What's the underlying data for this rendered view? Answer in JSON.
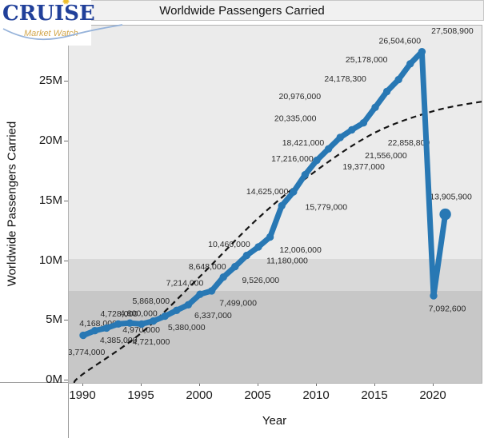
{
  "logo": {
    "brand": "CRUISE",
    "tagline": "Market Watch",
    "brand_color": "#21409a",
    "tagline_color": "#d2a74d",
    "star_color": "#eebe2f",
    "swoosh_color": "#96b3da"
  },
  "chart_data": {
    "type": "line",
    "title": "Worldwide Passengers Carried",
    "xlabel": "Year",
    "ylabel": "Worldwide Passengers Carried",
    "grid": false,
    "legend_position": "none",
    "xlim_years": [
      1988.8,
      2024.1
    ],
    "ylim": [
      0,
      30300000
    ],
    "x_ticks": [
      1990,
      1995,
      2000,
      2005,
      2010,
      2015,
      2020
    ],
    "y_ticks": [
      {
        "value": 0,
        "label": "0M"
      },
      {
        "value": 5000000,
        "label": "5M"
      },
      {
        "value": 10000000,
        "label": "10M"
      },
      {
        "value": 15000000,
        "label": "15M"
      },
      {
        "value": 20000000,
        "label": "20M"
      },
      {
        "value": 25000000,
        "label": "25M"
      }
    ],
    "background_bands": [
      {
        "top_millions": 10.17,
        "bottom_millions": 7.49,
        "color": "#d9d9d9"
      },
      {
        "top_millions": 7.49,
        "bottom_millions": -0.25,
        "color": "#c7c7c7"
      }
    ],
    "series": [
      {
        "name": "Worldwide passengers carried",
        "color": "#2878b4",
        "points": [
          {
            "year": 1990,
            "value": 3774000,
            "label": "3,774,000",
            "label_dx": 4,
            "label_dy": 21
          },
          {
            "year": 1991,
            "value": 4168000,
            "label": "4,168,000",
            "label_dx": 4,
            "label_dy": -9
          },
          {
            "year": 1992,
            "value": 4385000,
            "label": "4,385,000",
            "label_dx": 15,
            "label_dy": 15
          },
          {
            "year": 1993,
            "value": 4728000,
            "label": "4,728,000",
            "label_dx": 1,
            "label_dy": -13
          },
          {
            "year": 1994,
            "value": 4800000,
            "label": "4,800,000",
            "label_dx": 11,
            "label_dy": -12
          },
          {
            "year": 1995,
            "value": 4721000,
            "label": "4,721,000",
            "label_dx": 12,
            "label_dy": 22
          },
          {
            "year": 1996,
            "value": 4970000,
            "label": "4,970,000",
            "label_dx": -15,
            "label_dy": 11
          },
          {
            "year": 1997,
            "value": 5380000,
            "label": "5,380,000",
            "label_dx": 27,
            "label_dy": 14
          },
          {
            "year": 1998,
            "value": 5868000,
            "label": "5,868,000",
            "label_dx": -32,
            "label_dy": -12
          },
          {
            "year": 1999,
            "value": 6337000,
            "label": "6,337,000",
            "label_dx": 31,
            "label_dy": 13
          },
          {
            "year": 2000,
            "value": 7214000,
            "label": "7,214,000",
            "label_dx": -19,
            "label_dy": -14
          },
          {
            "year": 2001,
            "value": 7499000,
            "label": "7,499,000",
            "label_dx": 33,
            "label_dy": 15
          },
          {
            "year": 2002,
            "value": 8648000,
            "label": "8,648,000",
            "label_dx": -20,
            "label_dy": -13
          },
          {
            "year": 2003,
            "value": 9526000,
            "label": "9,526,000",
            "label_dx": 32,
            "label_dy": 17
          },
          {
            "year": 2004,
            "value": 10460000,
            "label": "10,460,000",
            "label_dx": -22,
            "label_dy": -14
          },
          {
            "year": 2005,
            "value": 11180000,
            "label": "11,180,000",
            "label_dx": 36,
            "label_dy": 17
          },
          {
            "year": 2006,
            "value": 12006000,
            "label": "12,006,000",
            "label_dx": 38,
            "label_dy": 16
          },
          {
            "year": 2007,
            "value": 14625000,
            "label": "14,625,000",
            "label_dx": -18,
            "label_dy": -18
          },
          {
            "year": 2008,
            "value": 15779000,
            "label": "15,779,000",
            "label_dx": 41,
            "label_dy": 19
          },
          {
            "year": 2009,
            "value": 17216000,
            "label": "17,216,000",
            "label_dx": -16,
            "label_dy": -20
          },
          {
            "year": 2010,
            "value": 18421000,
            "label": "18,421,000",
            "label_dx": -17,
            "label_dy": -22
          },
          {
            "year": 2011,
            "value": 19377000,
            "label": "19,377,000",
            "label_dx": 44,
            "label_dy": 22
          },
          {
            "year": 2012,
            "value": 20335000,
            "label": "20,335,000",
            "label_dx": -56,
            "label_dy": -24
          },
          {
            "year": 2013,
            "value": 20976000,
            "label": "20,976,000",
            "label_dx": -65,
            "label_dy": -42
          },
          {
            "year": 2014,
            "value": 21556000,
            "label": "21,556,000",
            "label_dx": 28,
            "label_dy": 41
          },
          {
            "year": 2015,
            "value": 22858800,
            "label": "22,858,800",
            "label_dx": 42,
            "label_dy": 44
          },
          {
            "year": 2016,
            "value": 24178300,
            "label": "24,178,300",
            "label_dx": -52,
            "label_dy": -16
          },
          {
            "year": 2017,
            "value": 25178000,
            "label": "25,178,000",
            "label_dx": -40,
            "label_dy": -25
          },
          {
            "year": 2018,
            "value": 26504600,
            "label": "26,504,600",
            "label_dx": -13,
            "label_dy": -29
          },
          {
            "year": 2019,
            "value": 27508900,
            "label": "27,508,900",
            "label_dx": 38,
            "label_dy": -26
          },
          {
            "year": 2020,
            "value": 7092600,
            "label": "7,092,600",
            "label_dx": 17,
            "label_dy": 16
          },
          {
            "year": 2021,
            "value": 13905900,
            "label": "13,905,900",
            "label_dx": 7,
            "label_dy": -22
          }
        ]
      }
    ],
    "trend_line": {
      "style": "dashed",
      "color": "#151515",
      "points": [
        {
          "year": 1989.2,
          "millions": -0.2
        },
        {
          "year": 1990.0,
          "millions": 0.55
        },
        {
          "year": 1995.0,
          "millions": 4.0
        },
        {
          "year": 2000.0,
          "millions": 8.7
        },
        {
          "year": 2005.0,
          "millions": 13.6
        },
        {
          "year": 2010.0,
          "millions": 17.6
        },
        {
          "year": 2015.0,
          "millions": 20.75
        },
        {
          "year": 2020.0,
          "millions": 22.55
        },
        {
          "year": 2024.2,
          "millions": 23.35
        }
      ]
    }
  }
}
